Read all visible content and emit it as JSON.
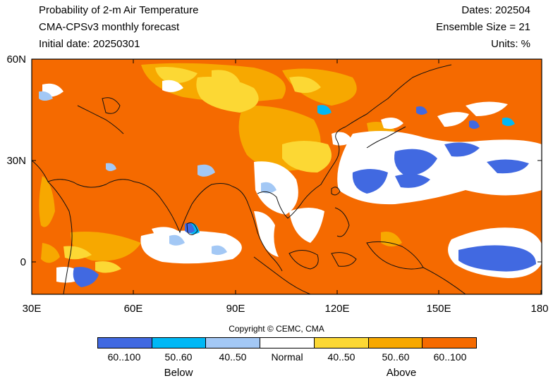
{
  "header": {
    "title": "Probability of 2-m Air Temperature",
    "model": "CMA-CPSv3 monthly forecast",
    "initial": "Initial date: 20250301",
    "dates": "Dates: 202504",
    "ensemble": "Ensemble Size = 21",
    "units": "Units: %"
  },
  "map": {
    "lat_labels": [
      "60N",
      "30N",
      "0"
    ],
    "lon_labels": [
      "30E",
      "60E",
      "90E",
      "120E",
      "150E",
      "180"
    ],
    "background_category": "above-60-100"
  },
  "copyright": "Copyright © CEMC, CMA",
  "legend": {
    "items": [
      {
        "label": "60..100",
        "color": "#4169e1"
      },
      {
        "label": "50..60",
        "color": "#00b8f5"
      },
      {
        "label": "40..50",
        "color": "#a3c8f5"
      },
      {
        "label": "Normal",
        "color": "#ffffff"
      },
      {
        "label": "40..50",
        "color": "#fcd834"
      },
      {
        "label": "50..60",
        "color": "#f7a800"
      },
      {
        "label": "60..100",
        "color": "#f56a00"
      }
    ],
    "below_label": "Below",
    "above_label": "Above"
  }
}
